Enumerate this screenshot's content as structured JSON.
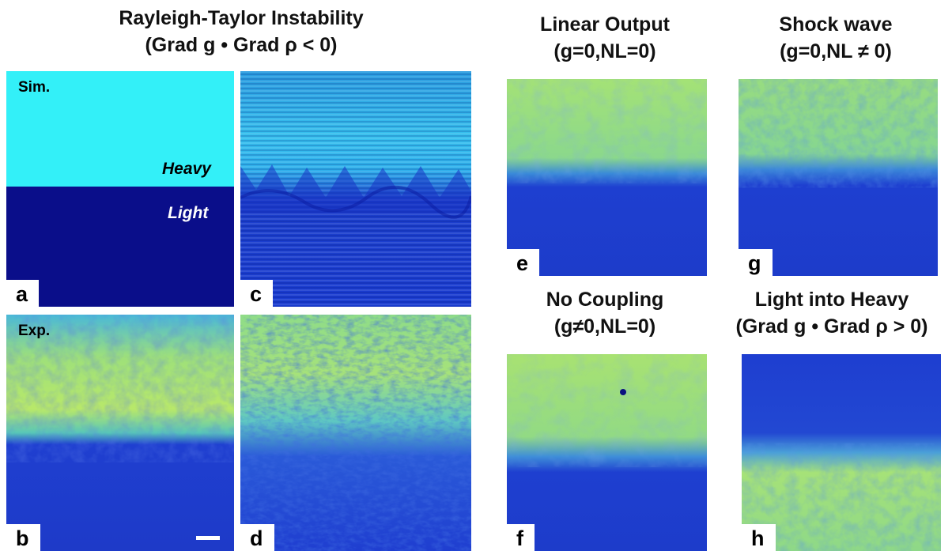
{
  "titles": {
    "main": "Rayleigh-Taylor Instability",
    "main_sub": "(Grad g • Grad ρ < 0)",
    "linear": "Linear Output",
    "linear_sub": "(g=0,NL=0)",
    "shock": "Shock wave",
    "shock_sub": "(g=0,NL ≠ 0)",
    "nocoupling": "No Coupling",
    "nocoupling_sub": "(g≠0,NL=0)",
    "lightheavy": "Light into Heavy",
    "lightheavy_sub": "(Grad g • Grad ρ > 0)"
  },
  "panels": {
    "a": {
      "label": "a",
      "sim": "Sim.",
      "heavy": "Heavy",
      "light": "Light"
    },
    "b": {
      "label": "b",
      "exp": "Exp."
    },
    "c": {
      "label": "c"
    },
    "d": {
      "label": "d"
    },
    "e": {
      "label": "e"
    },
    "f": {
      "label": "f"
    },
    "g": {
      "label": "g"
    },
    "h": {
      "label": "h"
    }
  },
  "colors": {
    "cyan": "#33f0f8",
    "navy": "#0a0e8a",
    "blue": "#1f3fd0",
    "yellow_green": "#b8e86a",
    "green": "#5fd896"
  }
}
